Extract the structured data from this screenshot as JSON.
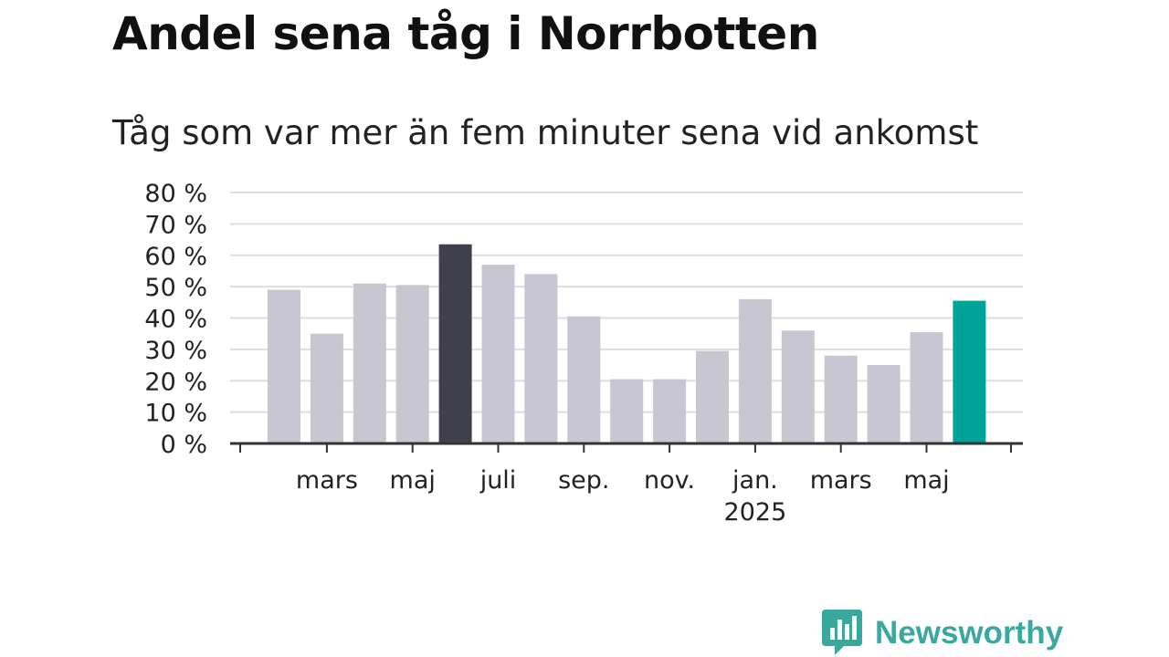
{
  "title": "Andel sena tåg i Norrbotten",
  "subtitle": "Tåg som var mer än fem minuter sena vid ankomst",
  "brand": {
    "name": "Newsworthy"
  },
  "colors": {
    "default": "#c7c6d1",
    "highlight_dark": "#40404d",
    "highlight_teal": "#00a398",
    "grid": "#dddddd",
    "axis": "#333333"
  },
  "chart_data": {
    "type": "bar",
    "categories": [
      "2024-02",
      "2024-03",
      "2024-04",
      "2024-05",
      "2024-06",
      "2024-07",
      "2024-08",
      "2024-09",
      "2024-10",
      "2024-11",
      "2024-12",
      "2025-01",
      "2025-02",
      "2025-03",
      "2025-04",
      "2025-05",
      "2025-06"
    ],
    "values": [
      49,
      35,
      51,
      50.5,
      63.5,
      57,
      54,
      40.5,
      20.5,
      20.5,
      29.5,
      46,
      36,
      28,
      25,
      35.5,
      45.5
    ],
    "highlight": {
      "2024-06": "highlight_dark",
      "2025-06": "highlight_teal"
    },
    "ylim": [
      0,
      80
    ],
    "y_ticks": [
      {
        "value": 0,
        "label": "0 %"
      },
      {
        "value": 10,
        "label": "10 %"
      },
      {
        "value": 20,
        "label": "20 %"
      },
      {
        "value": 30,
        "label": "30 %"
      },
      {
        "value": 40,
        "label": "40 %"
      },
      {
        "value": 50,
        "label": "50 %"
      },
      {
        "value": 60,
        "label": "60 %"
      },
      {
        "value": 70,
        "label": "70 %"
      },
      {
        "value": 80,
        "label": "80 %"
      }
    ],
    "x_ticks": [
      {
        "category": "2024-03",
        "label": "mars"
      },
      {
        "category": "2024-05",
        "label": "maj"
      },
      {
        "category": "2024-07",
        "label": "juli"
      },
      {
        "category": "2024-09",
        "label": "sep."
      },
      {
        "category": "2024-11",
        "label": "nov."
      },
      {
        "category": "2025-01",
        "label": "jan.",
        "sublabel": "2025"
      },
      {
        "category": "2025-03",
        "label": "mars"
      },
      {
        "category": "2025-05",
        "label": "maj"
      }
    ],
    "grid": true,
    "legend": "none"
  }
}
